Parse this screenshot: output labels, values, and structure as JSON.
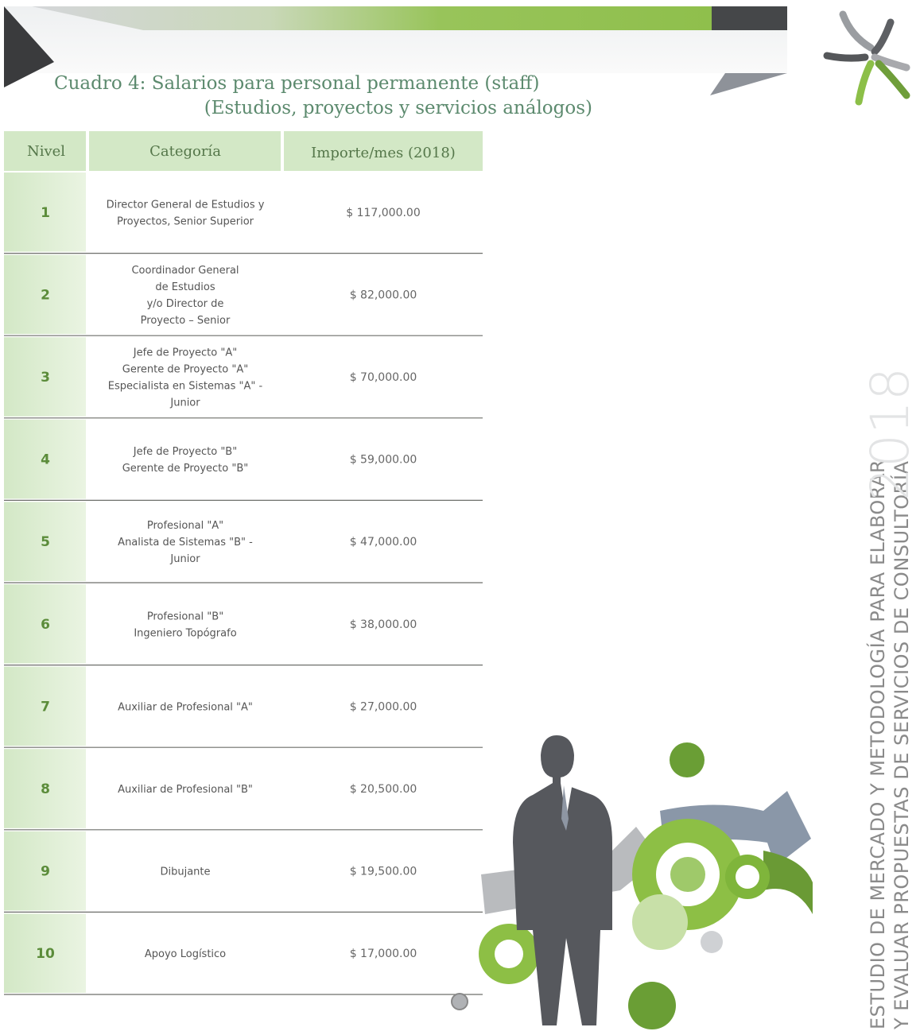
{
  "header": {
    "title_lines": [
      "Cuadro 4: Salarios para personal permanente (staff)",
      "(Estudios, proyectos y servicios análogos)"
    ]
  },
  "table": {
    "columns": [
      "Nivel",
      "Categoría",
      "Importe/mes (2018)"
    ],
    "rows": [
      [
        "1",
        [
          "Director General de Estudios y",
          "Proyectos, Senior Superior"
        ],
        "$ 117,000.00"
      ],
      [
        "2",
        [
          "Coordinador General",
          "de Estudios",
          "y/o Director de",
          "Proyecto – Senior"
        ],
        "$ 82,000.00"
      ],
      [
        "3",
        [
          "Jefe de Proyecto \"A\"",
          "Gerente de Proyecto \"A\"",
          "Especialista en Sistemas \"A\" -",
          "Junior"
        ],
        "$ 70,000.00"
      ],
      [
        "4",
        [
          "Jefe de Proyecto \"B\"",
          "Gerente de Proyecto \"B\""
        ],
        "$ 59,000.00"
      ],
      [
        "5",
        [
          "Profesional \"A\"",
          "Analista de Sistemas \"B\" -",
          "Junior"
        ],
        "$ 47,000.00"
      ],
      [
        "6",
        [
          "Profesional \"B\"",
          "Ingeniero Topógrafo"
        ],
        "$ 38,000.00"
      ],
      [
        "7",
        [
          "Auxiliar de Profesional \"A\""
        ],
        "$ 27,000.00"
      ],
      [
        "8",
        [
          "Auxiliar de Profesional \"B\""
        ],
        "$ 20,500.00"
      ],
      [
        "9",
        [
          "Dibujante"
        ],
        "$ 19,500.00"
      ],
      [
        "10",
        [
          "Apoyo Logístico"
        ],
        "$ 17,000.00"
      ]
    ]
  },
  "side": {
    "lines": [
      "ESTUDIO DE MERCADO Y METODOLOGÍA PARA ELABORAR",
      "Y EVALUAR PROPUESTAS DE SERVICIOS DE CONSULTORÍA"
    ],
    "year": "2018"
  }
}
